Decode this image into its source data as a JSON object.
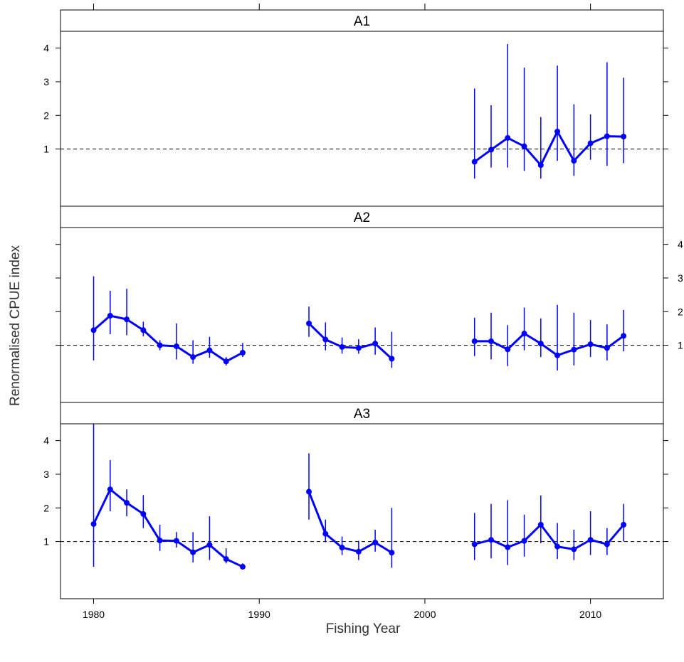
{
  "chart_data": {
    "type": "line",
    "xlabel": "Fishing Year",
    "ylabel": "Renormalised CPUE index",
    "xlim": [
      1978,
      2014.4
    ],
    "ylim": [
      -0.7,
      4.5
    ],
    "x_ticks": [
      "1980",
      "1990",
      "2000",
      "2010"
    ],
    "y_ticks": [
      "1",
      "2",
      "3",
      "4"
    ],
    "reference_line": 1,
    "color": "#0000ff",
    "panels": [
      {
        "name": "A1",
        "series": [
          {
            "x": [
              2003,
              2004,
              2005,
              2006,
              2007,
              2008,
              2009,
              2010,
              2011,
              2012
            ],
            "y": [
              0.62,
              0.98,
              1.33,
              1.08,
              0.52,
              1.52,
              0.65,
              1.17,
              1.38,
              1.37
            ],
            "lower": [
              0.12,
              0.45,
              0.45,
              0.35,
              0.12,
              0.65,
              0.2,
              0.68,
              0.5,
              0.58
            ],
            "upper": [
              2.8,
              2.3,
              4.12,
              3.42,
              1.95,
              3.48,
              2.33,
              2.03,
              3.58,
              3.12
            ]
          }
        ]
      },
      {
        "name": "A2",
        "series": [
          {
            "x": [
              1980,
              1981,
              1982,
              1983,
              1984,
              1985,
              1986,
              1987,
              1988,
              1989
            ],
            "y": [
              1.45,
              1.88,
              1.77,
              1.45,
              1.0,
              0.97,
              0.65,
              0.85,
              0.52,
              0.78
            ],
            "lower": [
              0.55,
              1.33,
              1.3,
              1.27,
              0.85,
              0.58,
              0.45,
              0.63,
              0.4,
              0.65
            ],
            "upper": [
              3.05,
              2.62,
              2.68,
              1.7,
              1.15,
              1.65,
              1.15,
              1.25,
              0.65,
              1.07
            ]
          },
          {
            "x": [
              1993,
              1994,
              1995,
              1996,
              1997,
              1998
            ],
            "y": [
              1.65,
              1.17,
              0.95,
              0.92,
              1.05,
              0.6
            ],
            "lower": [
              1.25,
              0.85,
              0.75,
              0.75,
              0.72,
              0.33
            ],
            "upper": [
              2.15,
              1.68,
              1.23,
              1.18,
              1.53,
              1.4
            ]
          },
          {
            "x": [
              2003,
              2004,
              2005,
              2006,
              2007,
              2008,
              2009,
              2010,
              2011,
              2012
            ],
            "y": [
              1.12,
              1.12,
              0.88,
              1.35,
              1.05,
              0.7,
              0.87,
              1.03,
              0.92,
              1.28
            ],
            "lower": [
              0.68,
              0.58,
              0.38,
              0.85,
              0.65,
              0.25,
              0.4,
              0.65,
              0.55,
              0.82
            ],
            "upper": [
              1.82,
              1.97,
              1.6,
              2.12,
              1.8,
              2.2,
              1.97,
              1.75,
              1.62,
              2.05
            ]
          }
        ]
      },
      {
        "name": "A3",
        "series": [
          {
            "x": [
              1980,
              1981,
              1982,
              1983,
              1984,
              1985,
              1986,
              1987,
              1988,
              1989
            ],
            "y": [
              1.52,
              2.55,
              2.15,
              1.82,
              1.03,
              1.02,
              0.68,
              0.9,
              0.48,
              0.25
            ],
            "lower": [
              0.25,
              1.9,
              1.75,
              1.4,
              0.72,
              0.82,
              0.38,
              0.45,
              0.35,
              0.18
            ],
            "upper": [
              4.5,
              3.42,
              2.55,
              2.38,
              1.5,
              1.28,
              1.28,
              1.75,
              0.8,
              0.35
            ]
          },
          {
            "x": [
              1993,
              1994,
              1995,
              1996,
              1997,
              1998
            ],
            "y": [
              2.48,
              1.23,
              0.82,
              0.7,
              0.97,
              0.67
            ],
            "lower": [
              1.65,
              0.98,
              0.6,
              0.45,
              0.7,
              0.22
            ],
            "upper": [
              3.62,
              1.65,
              1.15,
              1.02,
              1.35,
              2.0
            ]
          },
          {
            "x": [
              2003,
              2004,
              2005,
              2006,
              2007,
              2008,
              2009,
              2010,
              2011,
              2012
            ],
            "y": [
              0.92,
              1.05,
              0.83,
              1.02,
              1.5,
              0.85,
              0.77,
              1.05,
              0.92,
              1.5
            ],
            "lower": [
              0.45,
              0.5,
              0.3,
              0.55,
              0.95,
              0.48,
              0.45,
              0.6,
              0.6,
              1.0
            ],
            "upper": [
              1.85,
              2.12,
              2.23,
              1.8,
              2.37,
              1.55,
              1.35,
              1.9,
              1.4,
              2.12
            ]
          }
        ]
      }
    ]
  }
}
